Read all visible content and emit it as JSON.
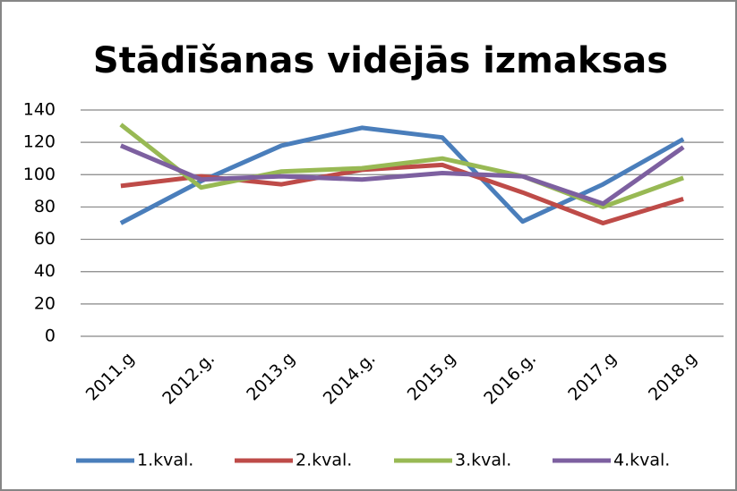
{
  "chart_data": {
    "type": "line",
    "title": "Stādīšanas vidējās izmaksas",
    "categories": [
      "2011.g",
      "2012.g.",
      "2013.g",
      "2014.g.",
      "2015.g",
      "2016.g.",
      "2017.g",
      "2018.g"
    ],
    "series": [
      {
        "name": "1.kval.",
        "color": "#4a7ebb",
        "values": [
          70,
          96,
          118,
          129,
          123,
          71,
          94,
          122
        ]
      },
      {
        "name": "2.kval.",
        "color": "#be4b48",
        "values": [
          93,
          99,
          94,
          103,
          106,
          89,
          70,
          85
        ]
      },
      {
        "name": "3.kval.",
        "color": "#98b954",
        "values": [
          131,
          92,
          102,
          104,
          110,
          99,
          80,
          98
        ]
      },
      {
        "name": "4.kval.",
        "color": "#7d60a0",
        "values": [
          118,
          97,
          99,
          97,
          101,
          99,
          82,
          117
        ]
      }
    ],
    "ylim": [
      0,
      140
    ],
    "yticks": [
      0,
      20,
      40,
      60,
      80,
      100,
      120,
      140
    ],
    "grid": true
  }
}
